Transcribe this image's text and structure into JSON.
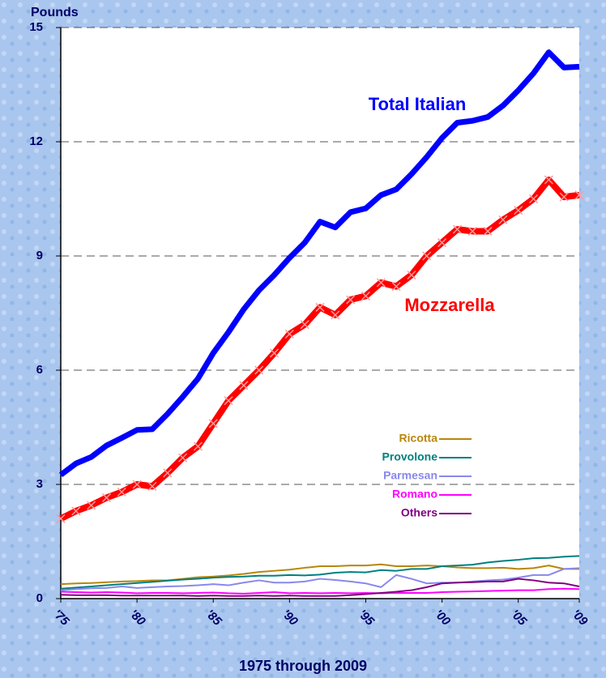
{
  "chart_data": {
    "type": "line",
    "y_axis_label": "Pounds",
    "x_axis_label": "1975 through 2009",
    "x": [
      1975,
      1976,
      1977,
      1978,
      1979,
      1980,
      1981,
      1982,
      1983,
      1984,
      1985,
      1986,
      1987,
      1988,
      1989,
      1990,
      1991,
      1992,
      1993,
      1994,
      1995,
      1996,
      1997,
      1998,
      1999,
      2000,
      2001,
      2002,
      2003,
      2004,
      2005,
      2006,
      2007,
      2008,
      2009
    ],
    "xlim": [
      1975,
      2009
    ],
    "xticks": [
      {
        "value": 1975,
        "label": "'75"
      },
      {
        "value": 1980,
        "label": "'80"
      },
      {
        "value": 1985,
        "label": "'85"
      },
      {
        "value": 1990,
        "label": "'90"
      },
      {
        "value": 1995,
        "label": "'95"
      },
      {
        "value": 2000,
        "label": "'00"
      },
      {
        "value": 2005,
        "label": "'05"
      },
      {
        "value": 2009,
        "label": "'09"
      }
    ],
    "ylim": [
      0,
      15
    ],
    "yticks": [
      0,
      3,
      6,
      9,
      12,
      15
    ],
    "grid": true,
    "series": [
      {
        "name": "Total Italian",
        "color": "#0000ff",
        "values": [
          3.25,
          3.55,
          3.72,
          4.02,
          4.22,
          4.43,
          4.45,
          4.85,
          5.3,
          5.78,
          6.45,
          7.0,
          7.6,
          8.1,
          8.5,
          8.95,
          9.35,
          9.9,
          9.75,
          10.15,
          10.25,
          10.6,
          10.75,
          11.15,
          11.6,
          12.1,
          12.5,
          12.55,
          12.65,
          12.95,
          13.35,
          13.8,
          14.35,
          13.95,
          13.97
        ]
      },
      {
        "name": "Mozzarella",
        "color": "#ff0000",
        "values": [
          2.1,
          2.3,
          2.45,
          2.65,
          2.8,
          3.0,
          2.95,
          3.3,
          3.7,
          4.0,
          4.6,
          5.2,
          5.6,
          6.0,
          6.45,
          6.95,
          7.2,
          7.65,
          7.45,
          7.85,
          7.95,
          8.3,
          8.2,
          8.5,
          9.0,
          9.35,
          9.7,
          9.65,
          9.65,
          9.95,
          10.2,
          10.5,
          11.0,
          10.55,
          10.6
        ]
      },
      {
        "name": "Ricotta",
        "color": "#b8860b",
        "values": [
          0.38,
          0.4,
          0.41,
          0.43,
          0.45,
          0.46,
          0.48,
          0.48,
          0.52,
          0.56,
          0.58,
          0.61,
          0.65,
          0.7,
          0.73,
          0.76,
          0.81,
          0.85,
          0.85,
          0.87,
          0.87,
          0.9,
          0.85,
          0.85,
          0.87,
          0.85,
          0.82,
          0.8,
          0.8,
          0.81,
          0.78,
          0.8,
          0.87,
          0.78,
          0.78
        ]
      },
      {
        "name": "Provolone",
        "color": "#008080",
        "values": [
          0.26,
          0.29,
          0.32,
          0.35,
          0.38,
          0.41,
          0.44,
          0.47,
          0.5,
          0.52,
          0.55,
          0.57,
          0.58,
          0.6,
          0.6,
          0.62,
          0.61,
          0.63,
          0.68,
          0.7,
          0.69,
          0.75,
          0.73,
          0.78,
          0.78,
          0.85,
          0.87,
          0.89,
          0.95,
          0.99,
          1.02,
          1.06,
          1.07,
          1.1,
          1.12
        ]
      },
      {
        "name": "Parmesan",
        "color": "#8888ee",
        "values": [
          0.22,
          0.25,
          0.27,
          0.28,
          0.32,
          0.28,
          0.3,
          0.32,
          0.33,
          0.35,
          0.38,
          0.35,
          0.42,
          0.48,
          0.42,
          0.42,
          0.45,
          0.52,
          0.49,
          0.45,
          0.4,
          0.3,
          0.62,
          0.52,
          0.4,
          0.42,
          0.42,
          0.45,
          0.48,
          0.5,
          0.55,
          0.62,
          0.62,
          0.78,
          0.8
        ]
      },
      {
        "name": "Romano",
        "color": "#ff00ff",
        "values": [
          0.18,
          0.17,
          0.16,
          0.17,
          0.16,
          0.14,
          0.15,
          0.15,
          0.14,
          0.15,
          0.16,
          0.14,
          0.13,
          0.15,
          0.17,
          0.14,
          0.15,
          0.14,
          0.15,
          0.14,
          0.15,
          0.14,
          0.15,
          0.15,
          0.15,
          0.17,
          0.18,
          0.19,
          0.2,
          0.21,
          0.22,
          0.22,
          0.25,
          0.26,
          0.25
        ]
      },
      {
        "name": "Others",
        "color": "#800080",
        "values": [
          0.1,
          0.09,
          0.09,
          0.09,
          0.08,
          0.08,
          0.08,
          0.08,
          0.08,
          0.07,
          0.08,
          0.07,
          0.07,
          0.08,
          0.07,
          0.08,
          0.07,
          0.07,
          0.07,
          0.09,
          0.12,
          0.15,
          0.18,
          0.22,
          0.3,
          0.4,
          0.42,
          0.43,
          0.45,
          0.45,
          0.52,
          0.48,
          0.42,
          0.4,
          0.32
        ]
      }
    ]
  }
}
